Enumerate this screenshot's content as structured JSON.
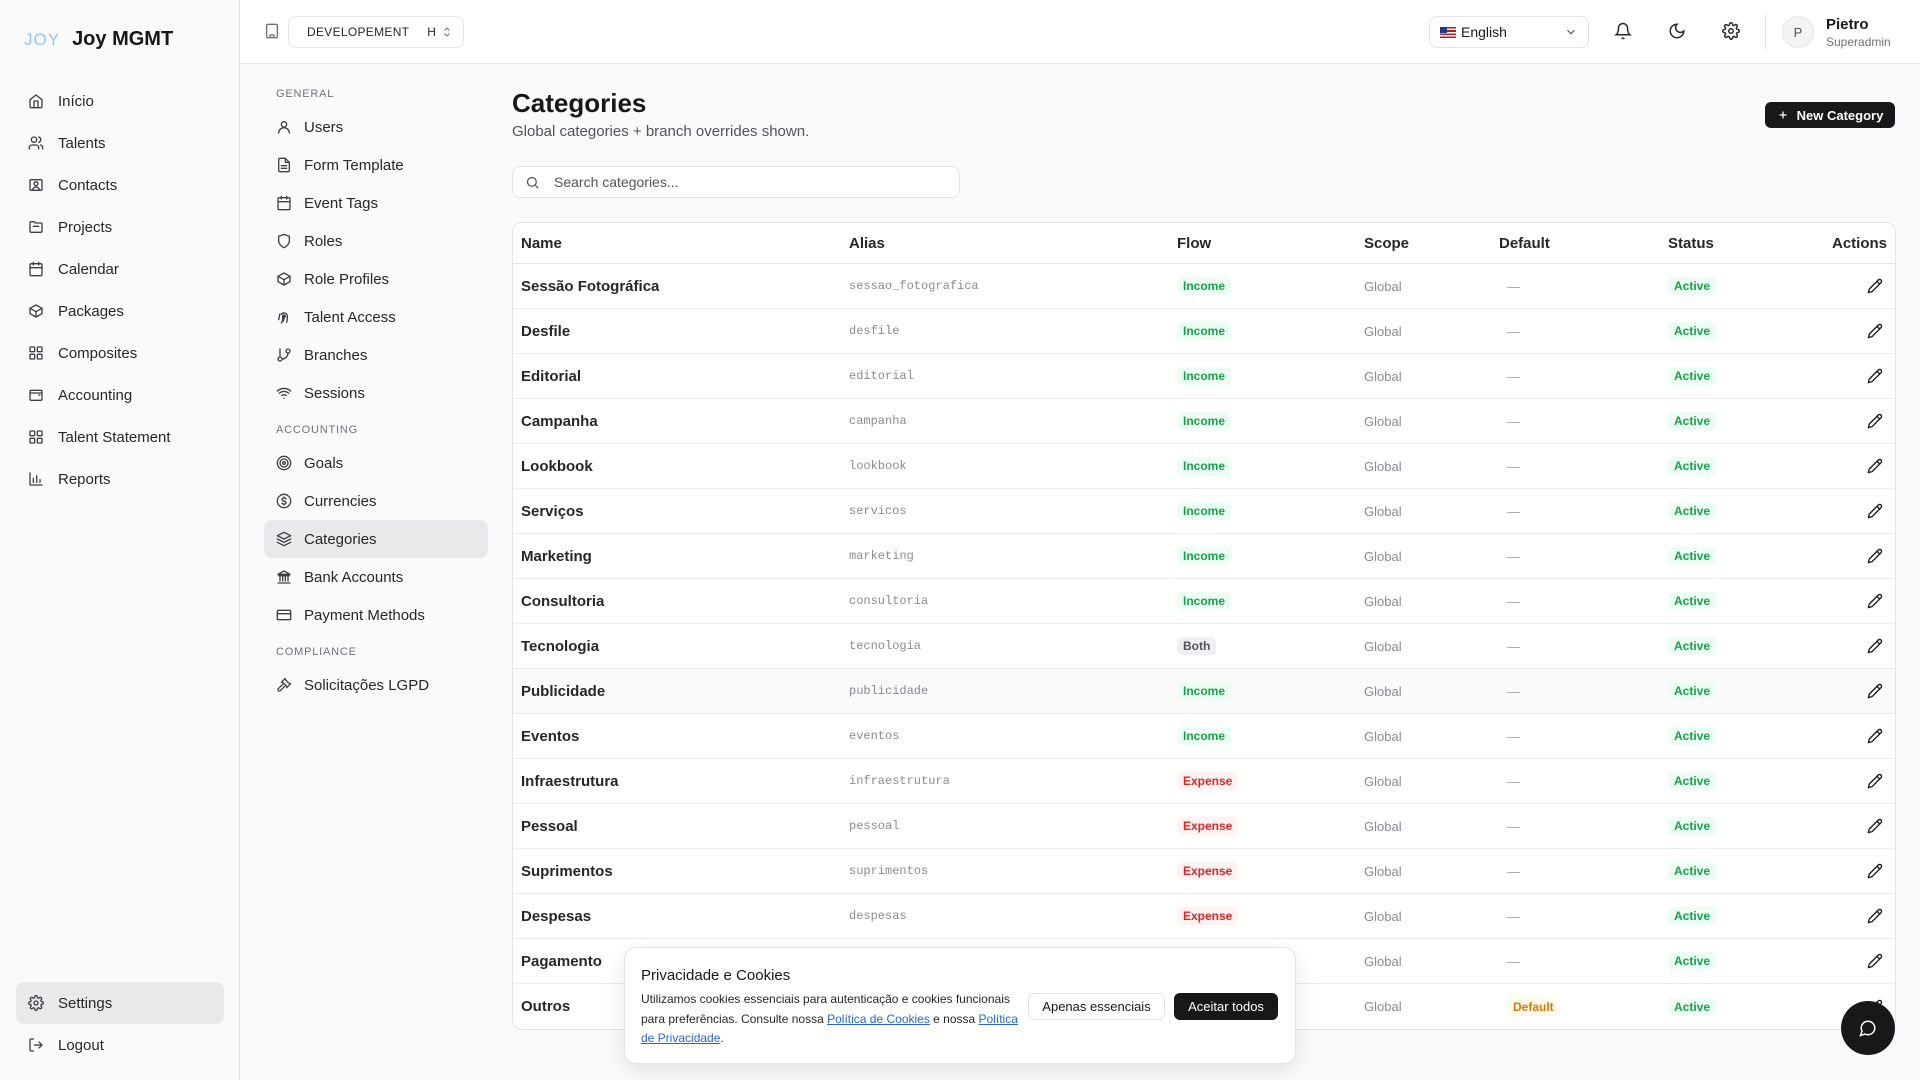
{
  "app": {
    "logo_mark": "JOY",
    "name": "Joy MGMT"
  },
  "main_nav": [
    {
      "label": "Início",
      "icon": "home-icon"
    },
    {
      "label": "Talents",
      "icon": "users-icon"
    },
    {
      "label": "Contacts",
      "icon": "contact-card-icon"
    },
    {
      "label": "Projects",
      "icon": "folder-icon"
    },
    {
      "label": "Calendar",
      "icon": "calendar-icon"
    },
    {
      "label": "Packages",
      "icon": "package-icon"
    },
    {
      "label": "Composites",
      "icon": "grid-icon"
    },
    {
      "label": "Accounting",
      "icon": "wallet-icon"
    },
    {
      "label": "Talent Statement",
      "icon": "grid-icon"
    },
    {
      "label": "Reports",
      "icon": "bar-chart-icon"
    }
  ],
  "bottom_nav": {
    "settings": "Settings",
    "logout": "Logout"
  },
  "topbar": {
    "environment": "DEVELOPEMENT",
    "environment_badge": "H",
    "language": "English",
    "user_initial": "P",
    "user_name": "Pietro",
    "user_role": "Superadmin"
  },
  "settings_nav": {
    "sections": [
      {
        "title": "GENERAL",
        "items": [
          "Users",
          "Form Template",
          "Event Tags",
          "Roles",
          "Role Profiles",
          "Talent Access",
          "Branches",
          "Sessions"
        ]
      },
      {
        "title": "ACCOUNTING",
        "items": [
          "Goals",
          "Currencies",
          "Categories",
          "Bank Accounts",
          "Payment Methods"
        ]
      },
      {
        "title": "COMPLIANCE",
        "items": [
          "Solicitações LGPD"
        ]
      }
    ],
    "active": "Categories"
  },
  "page": {
    "title": "Categories",
    "subtitle": "Global categories + branch overrides shown.",
    "new_button": "New Category",
    "search_placeholder": "Search categories..."
  },
  "table": {
    "columns": {
      "name": "Name",
      "alias": "Alias",
      "flow": "Flow",
      "scope": "Scope",
      "default": "Default",
      "status": "Status",
      "actions": "Actions"
    },
    "rows": [
      {
        "name": "Sessão Fotográfica",
        "alias": "sessao_fotografica",
        "flow": "Income",
        "scope": "Global",
        "default": "—",
        "status": "Active"
      },
      {
        "name": "Desfile",
        "alias": "desfile",
        "flow": "Income",
        "scope": "Global",
        "default": "—",
        "status": "Active"
      },
      {
        "name": "Editorial",
        "alias": "editorial",
        "flow": "Income",
        "scope": "Global",
        "default": "—",
        "status": "Active"
      },
      {
        "name": "Campanha",
        "alias": "campanha",
        "flow": "Income",
        "scope": "Global",
        "default": "—",
        "status": "Active"
      },
      {
        "name": "Lookbook",
        "alias": "lookbook",
        "flow": "Income",
        "scope": "Global",
        "default": "—",
        "status": "Active"
      },
      {
        "name": "Serviços",
        "alias": "servicos",
        "flow": "Income",
        "scope": "Global",
        "default": "—",
        "status": "Active"
      },
      {
        "name": "Marketing",
        "alias": "marketing",
        "flow": "Income",
        "scope": "Global",
        "default": "—",
        "status": "Active"
      },
      {
        "name": "Consultoria",
        "alias": "consultoria",
        "flow": "Income",
        "scope": "Global",
        "default": "—",
        "status": "Active"
      },
      {
        "name": "Tecnologia",
        "alias": "tecnologia",
        "flow": "Both",
        "scope": "Global",
        "default": "—",
        "status": "Active"
      },
      {
        "name": "Publicidade",
        "alias": "publicidade",
        "flow": "Income",
        "scope": "Global",
        "default": "—",
        "status": "Active"
      },
      {
        "name": "Eventos",
        "alias": "eventos",
        "flow": "Income",
        "scope": "Global",
        "default": "—",
        "status": "Active"
      },
      {
        "name": "Infraestrutura",
        "alias": "infraestrutura",
        "flow": "Expense",
        "scope": "Global",
        "default": "—",
        "status": "Active"
      },
      {
        "name": "Pessoal",
        "alias": "pessoal",
        "flow": "Expense",
        "scope": "Global",
        "default": "—",
        "status": "Active"
      },
      {
        "name": "Suprimentos",
        "alias": "suprimentos",
        "flow": "Expense",
        "scope": "Global",
        "default": "—",
        "status": "Active"
      },
      {
        "name": "Despesas",
        "alias": "despesas",
        "flow": "Expense",
        "scope": "Global",
        "default": "—",
        "status": "Active"
      },
      {
        "name": "Pagamento",
        "alias": "",
        "flow": "",
        "scope": "Global",
        "default": "—",
        "status": "Active"
      },
      {
        "name": "Outros",
        "alias": "",
        "flow": "",
        "scope": "Global",
        "default": "Default",
        "status": "Active"
      }
    ]
  },
  "cookie_banner": {
    "title": "Privacidade e Cookies",
    "text_1": "Utilizamos cookies essenciais para autenticação e cookies funcionais para preferências. Consulte nossa ",
    "cookie_policy_link": "Política de Cookies",
    "text_2": " e nossa ",
    "privacy_policy_link": "Política de Privacidade",
    "text_3": ".",
    "essential_button": "Apenas essenciais",
    "accept_button": "Aceitar todos"
  },
  "colors": {
    "accent": "#18181b",
    "income": "#16a34a",
    "expense": "#dc2626",
    "default_badge": "#d97706",
    "link": "#2563eb"
  }
}
